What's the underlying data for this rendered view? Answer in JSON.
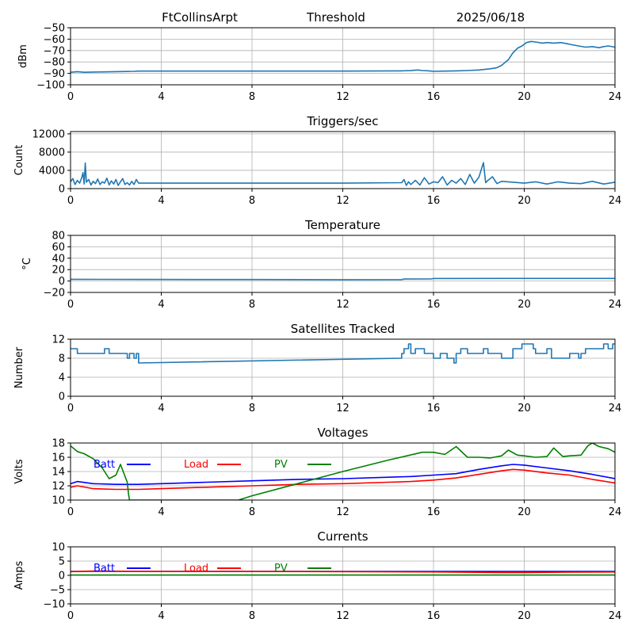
{
  "header": {
    "station": "FtCollinsArpt",
    "title": "Threshold",
    "date": "2025/06/18"
  },
  "colors": {
    "series_default": "#1f77b4",
    "batt": "#0000ff",
    "load": "#ff0000",
    "pv": "#008000",
    "grid": "#b0b0b0",
    "axis": "#000000"
  },
  "chart_data": [
    {
      "id": "threshold",
      "type": "line",
      "title": "",
      "ylabel": "dBm",
      "xlim": [
        0,
        24
      ],
      "ylim": [
        -100,
        -50
      ],
      "xticks": [
        "0",
        "4",
        "8",
        "12",
        "16",
        "20",
        "24"
      ],
      "yticks": [
        "−100",
        "−90",
        "−80",
        "−70",
        "−60",
        "−50"
      ],
      "grid": true,
      "series": [
        {
          "name": "",
          "color": "#1f77b4",
          "x": [
            0,
            0.3,
            0.6,
            1.0,
            1.5,
            2.0,
            2.5,
            2.8,
            3.0,
            8,
            12,
            14.6,
            15.0,
            15.3,
            15.5,
            15.8,
            16.0,
            16.5,
            17.0,
            17.5,
            18.0,
            18.5,
            18.8,
            19.0,
            19.3,
            19.5,
            19.7,
            19.9,
            20.1,
            20.3,
            20.5,
            20.8,
            21.0,
            21.3,
            21.6,
            21.9,
            22.0,
            22.4,
            22.7,
            23.0,
            23.3,
            23.5,
            23.7,
            24.0
          ],
          "y": [
            -89,
            -88.5,
            -89,
            -88.8,
            -88.7,
            -88.5,
            -88.3,
            -88.2,
            -88,
            -88,
            -88,
            -87.8,
            -87.6,
            -87,
            -87.5,
            -87.8,
            -88.2,
            -88,
            -87.8,
            -87.5,
            -87,
            -86,
            -85,
            -83,
            -78,
            -72,
            -68,
            -66,
            -63,
            -62,
            -62.5,
            -63.5,
            -63,
            -63.5,
            -63,
            -64,
            -64.5,
            -66,
            -67,
            -66.5,
            -67.5,
            -66.5,
            -66,
            -67
          ]
        }
      ]
    },
    {
      "id": "triggers",
      "type": "line",
      "title": "Triggers/sec",
      "ylabel": "Count",
      "xlim": [
        0,
        24
      ],
      "ylim": [
        0,
        12500
      ],
      "ytick_values": [
        0,
        4000,
        8000,
        12000
      ],
      "xticks": [
        "0",
        "4",
        "8",
        "12",
        "16",
        "20",
        "24"
      ],
      "yticks": [
        "0",
        "4000",
        "8000",
        "12000"
      ],
      "grid": true,
      "series": [
        {
          "name": "",
          "color": "#1f77b4",
          "x": [
            0,
            0.1,
            0.2,
            0.3,
            0.4,
            0.5,
            0.55,
            0.6,
            0.65,
            0.7,
            0.8,
            0.9,
            1.0,
            1.1,
            1.2,
            1.3,
            1.4,
            1.5,
            1.6,
            1.7,
            1.8,
            1.9,
            2.0,
            2.1,
            2.2,
            2.3,
            2.4,
            2.5,
            2.6,
            2.7,
            2.8,
            2.9,
            3.0,
            8,
            12,
            14.6,
            14.7,
            14.8,
            14.9,
            15.0,
            15.2,
            15.4,
            15.6,
            15.8,
            16.0,
            16.2,
            16.4,
            16.6,
            16.8,
            17.0,
            17.2,
            17.4,
            17.6,
            17.8,
            18.0,
            18.2,
            18.3,
            18.4,
            18.6,
            18.8,
            19.0,
            19.5,
            20.0,
            20.5,
            21.0,
            21.5,
            22.0,
            22.5,
            23.0,
            23.5,
            24.0
          ],
          "y": [
            1500,
            2200,
            900,
            1800,
            1200,
            2500,
            3500,
            1000,
            5600,
            1400,
            2000,
            800,
            1600,
            1100,
            2100,
            900,
            1500,
            1200,
            2300,
            800,
            1700,
            1000,
            2000,
            700,
            1500,
            2200,
            900,
            1300,
            800,
            1600,
            900,
            2000,
            1200,
            1200,
            1200,
            1300,
            2000,
            700,
            1500,
            900,
            1800,
            800,
            2400,
            1000,
            1500,
            1300,
            2600,
            800,
            1800,
            1200,
            2200,
            900,
            3100,
            1200,
            2500,
            5700,
            1300,
            1800,
            2600,
            1100,
            1600,
            1400,
            1200,
            1500,
            1000,
            1500,
            1200,
            1100,
            1600,
            1000,
            1400
          ]
        }
      ]
    },
    {
      "id": "temperature",
      "type": "line",
      "title": "Temperature",
      "ylabel": "°C",
      "xlim": [
        0,
        24
      ],
      "ylim": [
        -20,
        80
      ],
      "ytick_values": [
        -20,
        0,
        20,
        40,
        60,
        80
      ],
      "xticks": [
        "0",
        "4",
        "8",
        "12",
        "16",
        "20",
        "24"
      ],
      "yticks": [
        "−20",
        "0",
        "20",
        "40",
        "60",
        "80"
      ],
      "grid": true,
      "series": [
        {
          "name": "",
          "color": "#1f77b4",
          "x": [
            0,
            3,
            8,
            12,
            14.6,
            14.7,
            15.9,
            16.0,
            20,
            24
          ],
          "y": [
            3,
            2.8,
            2.6,
            2.4,
            2.5,
            3.5,
            3.6,
            4.5,
            4.6,
            4.6
          ]
        }
      ]
    },
    {
      "id": "satellites",
      "type": "line",
      "title": "Satellites Tracked",
      "ylabel": "Number",
      "xlim": [
        0,
        24
      ],
      "ylim": [
        0,
        12
      ],
      "ytick_values": [
        0,
        4,
        8,
        12
      ],
      "xticks": [
        "0",
        "4",
        "8",
        "12",
        "16",
        "20",
        "24"
      ],
      "yticks": [
        "0",
        "4",
        "8",
        "12"
      ],
      "grid": true,
      "series": [
        {
          "name": "",
          "color": "#1f77b4",
          "x": [
            0,
            0.3,
            0.3,
            0.7,
            0.7,
            1.5,
            1.5,
            1.7,
            1.7,
            2.5,
            2.5,
            2.6,
            2.6,
            2.8,
            2.8,
            2.9,
            2.9,
            3.0,
            3.0,
            14.6,
            14.6,
            14.7,
            14.7,
            14.9,
            14.9,
            15.0,
            15.0,
            15.2,
            15.2,
            15.6,
            15.6,
            16.0,
            16.0,
            16.3,
            16.3,
            16.6,
            16.6,
            16.9,
            16.9,
            17.0,
            17.0,
            17.2,
            17.2,
            17.5,
            17.5,
            18.2,
            18.2,
            18.4,
            18.4,
            19.0,
            19.0,
            19.5,
            19.5,
            19.9,
            19.9,
            20.4,
            20.4,
            20.5,
            20.5,
            21.0,
            21.0,
            21.2,
            21.2,
            22.0,
            22.0,
            22.4,
            22.4,
            22.5,
            22.5,
            22.7,
            22.7,
            23.5,
            23.5,
            23.7,
            23.7,
            23.9,
            23.9,
            24.0
          ],
          "y": [
            10,
            10,
            9,
            9,
            9,
            9,
            10,
            10,
            9,
            9,
            8,
            8,
            9,
            9,
            8,
            8,
            9,
            9,
            7,
            8,
            9,
            9,
            10,
            10,
            11,
            11,
            9,
            9,
            10,
            10,
            9,
            9,
            8,
            8,
            9,
            9,
            8,
            8,
            7,
            7,
            9,
            9,
            10,
            10,
            9,
            9,
            10,
            10,
            9,
            9,
            8,
            8,
            10,
            10,
            11,
            11,
            10,
            10,
            9,
            9,
            10,
            10,
            8,
            8,
            9,
            9,
            8,
            8,
            9,
            9,
            10,
            10,
            11,
            11,
            10,
            10,
            11,
            11
          ]
        }
      ]
    },
    {
      "id": "voltages",
      "type": "line",
      "title": "Voltages",
      "ylabel": "Volts",
      "xlim": [
        0,
        24
      ],
      "ylim": [
        10,
        18
      ],
      "ytick_values": [
        10,
        12,
        14,
        16,
        18
      ],
      "xticks": [
        "0",
        "4",
        "8",
        "12",
        "16",
        "20",
        "24"
      ],
      "yticks": [
        "10",
        "12",
        "14",
        "16",
        "18"
      ],
      "grid": true,
      "legend": [
        "Batt",
        "Load",
        "PV"
      ],
      "series": [
        {
          "name": "Batt",
          "color": "#0000ff",
          "x": [
            0,
            0.3,
            1,
            2,
            3,
            4,
            6,
            8,
            10,
            12,
            14,
            15,
            16,
            17,
            18,
            19,
            19.5,
            20,
            21,
            22,
            23,
            24
          ],
          "y": [
            12.3,
            12.6,
            12.3,
            12.2,
            12.2,
            12.3,
            12.5,
            12.7,
            12.9,
            13.0,
            13.2,
            13.3,
            13.5,
            13.7,
            14.3,
            14.8,
            15.0,
            14.9,
            14.5,
            14.1,
            13.6,
            13.0
          ]
        },
        {
          "name": "Load",
          "color": "#ff0000",
          "x": [
            0,
            0.3,
            1,
            2,
            3,
            4,
            6,
            8,
            10,
            12,
            14,
            15,
            16,
            17,
            18,
            19,
            19.5,
            20,
            21,
            22,
            23,
            24
          ],
          "y": [
            11.8,
            12.0,
            11.6,
            11.5,
            11.5,
            11.6,
            11.8,
            12.0,
            12.2,
            12.3,
            12.5,
            12.6,
            12.8,
            13.1,
            13.6,
            14.1,
            14.3,
            14.2,
            13.8,
            13.5,
            12.9,
            12.4
          ]
        },
        {
          "name": "PV",
          "color": "#008000",
          "x": [
            0,
            0.3,
            0.6,
            1.0,
            1.4,
            1.7,
            2.0,
            2.2,
            2.5,
            2.55,
            2.6,
            7.4,
            8,
            10,
            12,
            14,
            15.5,
            16,
            16.5,
            17.0,
            17.5,
            18.0,
            18.5,
            19.0,
            19.3,
            19.7,
            20.0,
            20.5,
            21.0,
            21.3,
            21.7,
            22.0,
            22.5,
            22.8,
            23.0,
            23.3,
            23.7,
            24.0
          ],
          "y": [
            17.6,
            16.8,
            16.5,
            15.8,
            14.5,
            13.0,
            13.5,
            15.0,
            12.5,
            11.0,
            10.0,
            10.0,
            10.6,
            12.3,
            14.0,
            15.6,
            16.7,
            16.7,
            16.4,
            17.5,
            16.0,
            16.0,
            15.9,
            16.2,
            17.0,
            16.3,
            16.2,
            16.0,
            16.1,
            17.3,
            16.1,
            16.2,
            16.3,
            17.6,
            18.0,
            17.5,
            17.2,
            16.7
          ]
        }
      ]
    },
    {
      "id": "currents",
      "type": "line",
      "title": "Currents",
      "ylabel": "Amps",
      "xlim": [
        0,
        24
      ],
      "ylim": [
        -10,
        10
      ],
      "ytick_values": [
        -10,
        -5,
        0,
        5,
        10
      ],
      "xticks": [
        "0",
        "4",
        "8",
        "12",
        "16",
        "20",
        "24"
      ],
      "yticks": [
        "−10",
        "−5",
        "0",
        "5",
        "10"
      ],
      "grid": true,
      "legend": [
        "Batt",
        "Load",
        "PV"
      ],
      "series": [
        {
          "name": "Batt",
          "color": "#0000ff",
          "x": [
            0,
            4,
            8,
            12,
            16,
            20,
            24
          ],
          "y": [
            1.4,
            1.4,
            1.4,
            1.4,
            1.4,
            1.4,
            1.4
          ]
        },
        {
          "name": "Load",
          "color": "#ff0000",
          "x": [
            0,
            1,
            4,
            8,
            12,
            16,
            19,
            20,
            22,
            24
          ],
          "y": [
            1.3,
            1.5,
            1.4,
            1.4,
            1.3,
            1.2,
            1.0,
            1.0,
            1.1,
            1.2
          ]
        },
        {
          "name": "PV",
          "color": "#008000",
          "x": [
            0,
            24
          ],
          "y": [
            0.1,
            0.1
          ]
        }
      ]
    }
  ]
}
